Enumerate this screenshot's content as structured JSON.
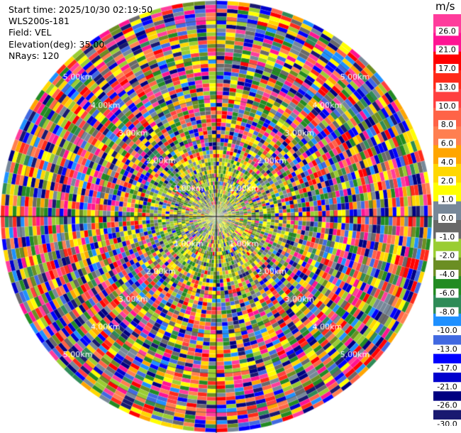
{
  "header": {
    "start_time": "Start time: 2025/10/30 02:19:50",
    "instrument": "WLS200s-181",
    "field": "Field: VEL",
    "elevation": "Elevation(deg): 35.00",
    "nrays": "NRays: 120"
  },
  "chart_data": {
    "type": "ppi",
    "field": "VEL",
    "units": "m/s",
    "elevation_deg": 35.0,
    "n_rays": 120,
    "range_rings_km": [
      1.0,
      2.0,
      3.0,
      4.0,
      5.0
    ],
    "range_ring_labels": [
      "1.00km",
      "2.00km",
      "3.00km",
      "4.00km",
      "5.00km"
    ],
    "max_range_km": 5.5,
    "n_gates": 55,
    "pattern": "noisy velocity field across entire scan; near-zero values (greens/yellows/greys) dominate near center",
    "colorbar": {
      "title": "m/s",
      "tick_labels": [
        "26.0",
        "21.0",
        "17.0",
        "13.0",
        "10.0",
        "8.0",
        "6.0",
        "4.0",
        "2.0",
        "1.0",
        "0.0",
        "-1.0",
        "-2.0",
        "-4.0",
        "-6.0",
        "-8.0",
        "-10.0",
        "-13.0",
        "-17.0",
        "-21.0",
        "-26.0",
        "-30.0"
      ],
      "colors": [
        "#ff3c9c",
        "#ff1493",
        "#ff0000",
        "#ff2a1a",
        "#ff4040",
        "#ff6347",
        "#ff7f50",
        "#ffa500",
        "#ffd700",
        "#ffff00",
        "#778899",
        "#696969",
        "#9acd32",
        "#6b8e23",
        "#228b22",
        "#2e8b57",
        "#1e90ff",
        "#4169e1",
        "#0000ff",
        "#0000cd",
        "#000080",
        "#191970"
      ]
    }
  }
}
